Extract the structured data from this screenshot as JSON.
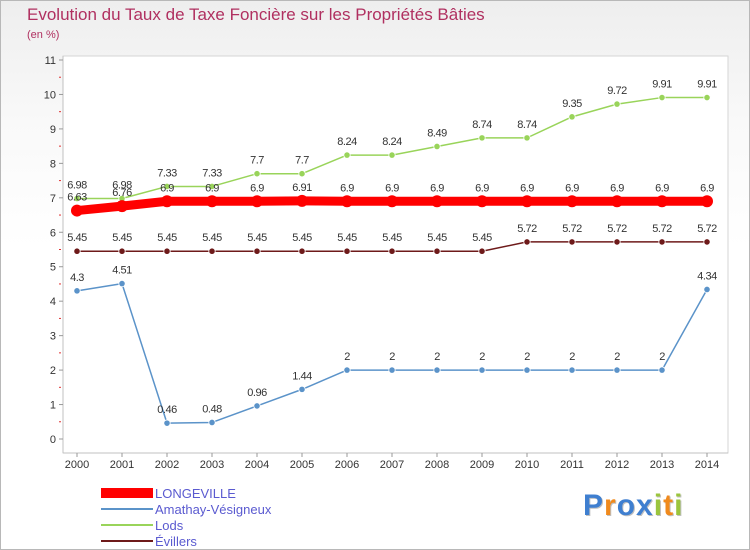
{
  "title": "Evolution du Taux de Taxe Foncière sur les Propriétés Bâties",
  "subtitle": "(en %)",
  "logo": {
    "letters": [
      "P",
      "r",
      "o",
      "x",
      "i",
      "t",
      "i"
    ],
    "colors": [
      "#3f7fd0",
      "#f08a1d",
      "#3f7fd0",
      "#3f7fd0",
      "#9bc53d",
      "#f08a1d",
      "#9bc53d"
    ]
  },
  "legend": [
    {
      "label": "LONGEVILLE",
      "color": "#ff0000"
    },
    {
      "label": "Amathay-Vésigneux",
      "color": "#5b93c9"
    },
    {
      "label": "Lods",
      "color": "#99d45a"
    },
    {
      "label": "Évillers",
      "color": "#6e1a1a"
    }
  ],
  "chart_data": {
    "type": "line",
    "title": "Evolution du Taux de Taxe Foncière sur les Propriétés Bâties",
    "ylabel": "(en %)",
    "xlabel": "",
    "categories": [
      "2000",
      "2001",
      "2002",
      "2003",
      "2004",
      "2005",
      "2006",
      "2007",
      "2008",
      "2009",
      "2010",
      "2011",
      "2012",
      "2013",
      "2014"
    ],
    "ylim": [
      0,
      11
    ],
    "yticks": [
      "0",
      "1",
      "2",
      "3",
      "4",
      "5",
      "6",
      "7",
      "8",
      "9",
      "10",
      "11"
    ],
    "series": [
      {
        "name": "Amathay-Vésigneux",
        "color": "#5b93c9",
        "values": [
          4.3,
          4.51,
          0.46,
          0.48,
          0.96,
          1.44,
          2,
          2,
          2,
          2,
          2,
          2,
          2,
          2,
          4.34
        ],
        "labels": [
          "4.3",
          "4.51",
          "0.46",
          "0.48",
          "0.96",
          "1.44",
          "2",
          "2",
          "2",
          "2",
          "2",
          "2",
          "2",
          "2",
          "4.34"
        ]
      },
      {
        "name": "Lods",
        "color": "#99d45a",
        "values": [
          6.98,
          6.98,
          7.33,
          7.33,
          7.7,
          7.7,
          8.24,
          8.24,
          8.49,
          8.74,
          8.74,
          9.35,
          9.72,
          9.91,
          9.91
        ],
        "labels": [
          "6.98",
          "6.98",
          "7.33",
          "7.33",
          "7.7",
          "7.7",
          "8.24",
          "8.24",
          "8.49",
          "8.74",
          "8.74",
          "9.35",
          "9.72",
          "9.91",
          "9.91"
        ]
      },
      {
        "name": "Évillers",
        "color": "#6e1a1a",
        "values": [
          5.45,
          5.45,
          5.45,
          5.45,
          5.45,
          5.45,
          5.45,
          5.45,
          5.45,
          5.45,
          5.72,
          5.72,
          5.72,
          5.72,
          5.72
        ],
        "labels": [
          "5.45",
          "5.45",
          "5.45",
          "5.45",
          "5.45",
          "5.45",
          "5.45",
          "5.45",
          "5.45",
          "5.45",
          "5.72",
          "5.72",
          "5.72",
          "5.72",
          "5.72"
        ]
      },
      {
        "name": "LONGEVILLE",
        "color": "#ff0000",
        "values": [
          6.63,
          6.76,
          6.9,
          6.9,
          6.9,
          6.91,
          6.9,
          6.9,
          6.9,
          6.9,
          6.9,
          6.9,
          6.9,
          6.9,
          6.9
        ],
        "labels": [
          "6.63",
          "6.76",
          "6.9",
          "6.9",
          "6.9",
          "6.91",
          "6.9",
          "6.9",
          "6.9",
          "6.9",
          "6.9",
          "6.9",
          "6.9",
          "6.9",
          "6.9"
        ]
      }
    ]
  }
}
